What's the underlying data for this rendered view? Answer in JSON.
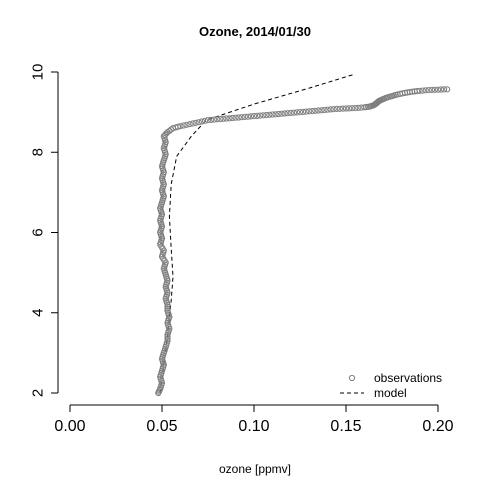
{
  "chart_data": {
    "type": "scatter",
    "title": "Ozone, 2014/01/30",
    "xlabel": "ozone [ppmv]",
    "ylabel": "",
    "xlim": [
      0.0,
      0.2
    ],
    "ylim": [
      2,
      10
    ],
    "x_ticks": [
      "0.00",
      "0.05",
      "0.10",
      "0.15",
      "0.20"
    ],
    "y_ticks": [
      "2",
      "4",
      "6",
      "8",
      "10"
    ],
    "grid": false,
    "legend_position": "bottom-right",
    "colors": {
      "observations": "#7f7f7f",
      "model": "#000000"
    },
    "series": [
      {
        "name": "observations",
        "kind": "points",
        "points": [
          [
            0.048,
            2.0
          ],
          [
            0.049,
            2.1
          ],
          [
            0.05,
            2.25
          ],
          [
            0.049,
            2.4
          ],
          [
            0.05,
            2.55
          ],
          [
            0.051,
            2.7
          ],
          [
            0.05,
            2.85
          ],
          [
            0.051,
            3.0
          ],
          [
            0.052,
            3.15
          ],
          [
            0.053,
            3.3
          ],
          [
            0.053,
            3.45
          ],
          [
            0.054,
            3.6
          ],
          [
            0.053,
            3.75
          ],
          [
            0.054,
            3.9
          ],
          [
            0.053,
            4.05
          ],
          [
            0.053,
            4.2
          ],
          [
            0.052,
            4.35
          ],
          [
            0.053,
            4.5
          ],
          [
            0.052,
            4.65
          ],
          [
            0.053,
            4.8
          ],
          [
            0.052,
            4.95
          ],
          [
            0.051,
            5.1
          ],
          [
            0.052,
            5.25
          ],
          [
            0.05,
            5.4
          ],
          [
            0.051,
            5.55
          ],
          [
            0.049,
            5.7
          ],
          [
            0.05,
            5.85
          ],
          [
            0.049,
            6.0
          ],
          [
            0.05,
            6.15
          ],
          [
            0.049,
            6.3
          ],
          [
            0.05,
            6.45
          ],
          [
            0.049,
            6.6
          ],
          [
            0.05,
            6.75
          ],
          [
            0.051,
            6.9
          ],
          [
            0.05,
            7.05
          ],
          [
            0.051,
            7.2
          ],
          [
            0.05,
            7.35
          ],
          [
            0.051,
            7.5
          ],
          [
            0.05,
            7.65
          ],
          [
            0.051,
            7.8
          ],
          [
            0.052,
            7.95
          ],
          [
            0.051,
            8.1
          ],
          [
            0.052,
            8.25
          ],
          [
            0.051,
            8.4
          ],
          [
            0.053,
            8.5
          ],
          [
            0.056,
            8.6
          ],
          [
            0.06,
            8.65
          ],
          [
            0.065,
            8.7
          ],
          [
            0.07,
            8.75
          ],
          [
            0.075,
            8.8
          ],
          [
            0.08,
            8.82
          ],
          [
            0.085,
            8.84
          ],
          [
            0.09,
            8.86
          ],
          [
            0.095,
            8.88
          ],
          [
            0.1,
            8.9
          ],
          [
            0.105,
            8.92
          ],
          [
            0.11,
            8.94
          ],
          [
            0.115,
            8.96
          ],
          [
            0.12,
            8.98
          ],
          [
            0.125,
            9.0
          ],
          [
            0.13,
            9.02
          ],
          [
            0.135,
            9.04
          ],
          [
            0.14,
            9.06
          ],
          [
            0.145,
            9.08
          ],
          [
            0.15,
            9.09
          ],
          [
            0.155,
            9.1
          ],
          [
            0.16,
            9.12
          ],
          [
            0.163,
            9.14
          ],
          [
            0.165,
            9.17
          ],
          [
            0.166,
            9.2
          ],
          [
            0.167,
            9.24
          ],
          [
            0.168,
            9.28
          ],
          [
            0.17,
            9.32
          ],
          [
            0.172,
            9.36
          ],
          [
            0.175,
            9.4
          ],
          [
            0.178,
            9.44
          ],
          [
            0.182,
            9.48
          ],
          [
            0.186,
            9.51
          ],
          [
            0.19,
            9.53
          ],
          [
            0.195,
            9.55
          ],
          [
            0.2,
            9.56
          ],
          [
            0.205,
            9.57
          ]
        ]
      },
      {
        "name": "model",
        "kind": "dashed-line",
        "points": [
          [
            0.049,
            2.0
          ],
          [
            0.051,
            2.7
          ],
          [
            0.053,
            3.4
          ],
          [
            0.055,
            4.3
          ],
          [
            0.056,
            4.9
          ],
          [
            0.055,
            5.6
          ],
          [
            0.054,
            6.4
          ],
          [
            0.055,
            7.2
          ],
          [
            0.058,
            7.9
          ],
          [
            0.066,
            8.4
          ],
          [
            0.074,
            8.8
          ],
          [
            0.1,
            9.2
          ],
          [
            0.13,
            9.6
          ],
          [
            0.155,
            9.95
          ]
        ]
      }
    ]
  }
}
